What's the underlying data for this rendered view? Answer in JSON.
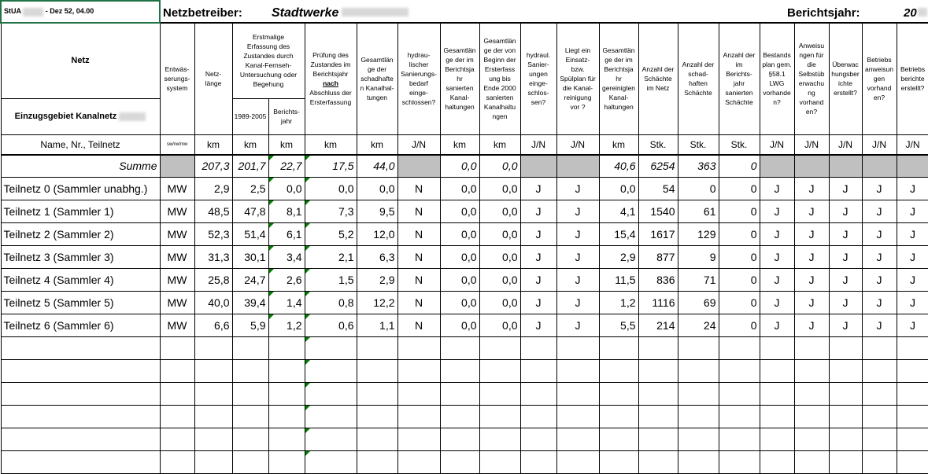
{
  "header": {
    "office": "StUA",
    "office_suffix": "- Dez 52, 04.00",
    "operator_label": "Netzbetreiber:",
    "operator": "Stadtwerke",
    "year_label": "Berichtsjahr:",
    "year": "20"
  },
  "table": {
    "network_header": "Netz",
    "area_header": "Einzugsgebiet Kanalnetz",
    "group_header": "Erstmalige\nErfassung des\nZustandes durch\nKanal-Fernseh-\nUntersuchung oder\nBegehung",
    "columns": [
      "Entwäs-\nserungs-\nsystem",
      "Netz-\nlänge",
      "1989-2005",
      "Berichts-\njahr",
      {
        "before": "Prüfung des\nZustandes im\nBerichtsjahr",
        "emph": "nach",
        "after": "Abschluss der\nErsterfassung"
      },
      "Gesamtlän\nge der\nschadhafte\nn Kanalhal-\ntungen",
      "hydrau-\nlischer\nSanierungs-\nbedarf\neinge-\nschlossen?",
      "Gesamtlän\nge der im\nBerichtsja\nhr\nsanierten\nKanal-\nhaltungen",
      "Gesamtlän\nge der von\nBeginn der\nErsterfass\nung bis\nEnde 2000\nsanierten\nKanalhaltu\nngen",
      "hydraul.\nSanier-\nungen\neinge-\nschlos-\nsen?",
      "Liegt ein\nEinsatz-\nbzw.\nSpülplan für\ndie Kanal-\nreinigung\nvor ?",
      "Gesamtlän\nge der im\nBerichtsja\nhr\ngereinigten\nKanal-\nhaltungen",
      "Anzahl der\nSchächte\nim Netz",
      "Anzahl der\nschad-\nhaften\nSchächte",
      "Anzahl der\nim\nBerichts-\njahr\nsanierten\nSchächte",
      "Bestands\nplan gem.\n§58.1\nLWG\nvorhande\nn?",
      "Anweisu\nngen für\ndie\nSelbstüb\nerwachu\nng\nvorhand\nen?",
      "Überwac\nhungsber\nichte\nerstellt?",
      "Betriebs\nanweisun\ngen\nvorhand\nen?",
      "Betriebs\nberichte\nerstellt?"
    ],
    "units": [
      "Name, Nr., Teilnetz",
      "sw/rw/mw",
      "km",
      "km",
      "km",
      "km",
      "km",
      "J/N",
      "km",
      "km",
      "J/N",
      "J/N",
      "km",
      "Stk.",
      "Stk.",
      "Stk.",
      "J/N",
      "J/N",
      "J/N",
      "J/N",
      "J/N"
    ],
    "sum_row": {
      "label": "Summe",
      "cells": [
        null,
        "207,3",
        "201,7",
        "22,7",
        "17,5",
        "44,0",
        null,
        "0,0",
        "0,0",
        null,
        null,
        "40,6",
        "6254",
        "363",
        "0",
        null,
        null,
        null,
        null,
        null
      ]
    },
    "rows": [
      [
        "Teilnetz 0 (Sammler unabhg.)",
        "MW",
        "2,9",
        "2,5",
        "0,0",
        "0,0",
        "0,0",
        "N",
        "0,0",
        "0,0",
        "J",
        "J",
        "0,0",
        "54",
        "0",
        "0",
        "J",
        "J",
        "J",
        "J",
        "J"
      ],
      [
        "Teilnetz 1 (Sammler 1)",
        "MW",
        "48,5",
        "47,8",
        "8,1",
        "7,3",
        "9,5",
        "N",
        "0,0",
        "0,0",
        "J",
        "J",
        "4,1",
        "1540",
        "61",
        "0",
        "J",
        "J",
        "J",
        "J",
        "J"
      ],
      [
        "Teilnetz 2 (Sammler 2)",
        "MW",
        "52,3",
        "51,4",
        "6,1",
        "5,2",
        "12,0",
        "N",
        "0,0",
        "0,0",
        "J",
        "J",
        "15,4",
        "1617",
        "129",
        "0",
        "J",
        "J",
        "J",
        "J",
        "J"
      ],
      [
        "Teilnetz 3 (Sammler 3)",
        "MW",
        "31,3",
        "30,1",
        "3,4",
        "2,1",
        "6,3",
        "N",
        "0,0",
        "0,0",
        "J",
        "J",
        "2,9",
        "877",
        "9",
        "0",
        "J",
        "J",
        "J",
        "J",
        "J"
      ],
      [
        "Teilnetz 4 (Sammler 4)",
        "MW",
        "25,8",
        "24,7",
        "2,6",
        "1,5",
        "2,9",
        "N",
        "0,0",
        "0,0",
        "J",
        "J",
        "11,5",
        "836",
        "71",
        "0",
        "J",
        "J",
        "J",
        "J",
        "J"
      ],
      [
        "Teilnetz 5 (Sammler 5)",
        "MW",
        "40,0",
        "39,4",
        "1,4",
        "0,8",
        "12,2",
        "N",
        "0,0",
        "0,0",
        "J",
        "J",
        "1,2",
        "1116",
        "69",
        "0",
        "J",
        "J",
        "J",
        "J",
        "J"
      ],
      [
        "Teilnetz 6 (Sammler 6)",
        "MW",
        "6,6",
        "5,9",
        "1,2",
        "0,6",
        "1,1",
        "N",
        "0,0",
        "0,0",
        "J",
        "J",
        "5,5",
        "214",
        "24",
        "0",
        "J",
        "J",
        "J",
        "J",
        "J"
      ]
    ]
  }
}
